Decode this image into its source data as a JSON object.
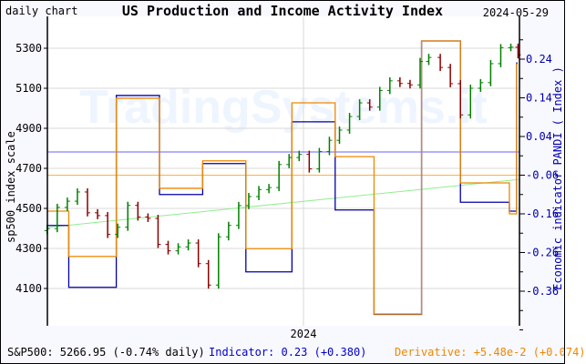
{
  "header": {
    "title": "US Production and Income Activity Index",
    "subtitle": "daily chart",
    "date": "2024-05-29"
  },
  "status": {
    "sp500": "S&P500: 5266.95 (-0.74% daily)",
    "indicator": "Indicator: 0.23 (+0.380)",
    "derivative": "Derivative: +5.48e-2 (+0.074)"
  },
  "watermark": "TradingSystems.it",
  "chart_data": {
    "type": "line",
    "title": "US Production and Income Activity Index",
    "ylabel": "sp500 index scale",
    "y2label": "Economic indicator PANDI ( Index )",
    "x_tick_labels": [
      "2024"
    ],
    "y_ticks": [
      5300,
      5100,
      4900,
      4700,
      4500,
      4300,
      4100
    ],
    "y2_ticks": [
      0.24,
      0.14,
      0.04,
      -0.06,
      -0.16,
      -0.26,
      -0.36
    ],
    "ylim": [
      3930,
      5460
    ],
    "y2lim": [
      -0.46,
      0.35
    ],
    "xlim": [
      "2023-07-06",
      "2024-05-31"
    ],
    "grid": true,
    "colors": {
      "up": "#008000",
      "down": "#8b0000",
      "indicator": "#0000aa",
      "derivative": "#ee8800",
      "trend": "#90ee90",
      "indicator_ref": "#6666ff",
      "derivative_ref": "#ffb040"
    },
    "sp500_weekly": {
      "dates": [
        "2023-07-07",
        "2023-07-14",
        "2023-07-21",
        "2023-07-28",
        "2023-08-04",
        "2023-08-11",
        "2023-08-18",
        "2023-08-25",
        "2023-09-01",
        "2023-09-08",
        "2023-09-15",
        "2023-09-22",
        "2023-09-29",
        "2023-10-06",
        "2023-10-13",
        "2023-10-20",
        "2023-10-27",
        "2023-11-03",
        "2023-11-10",
        "2023-11-17",
        "2023-11-24",
        "2023-12-01",
        "2023-12-08",
        "2023-12-15",
        "2023-12-22",
        "2023-12-29",
        "2024-01-05",
        "2024-01-12",
        "2024-01-19",
        "2024-01-26",
        "2024-02-02",
        "2024-02-09",
        "2024-02-16",
        "2024-02-23",
        "2024-03-01",
        "2024-03-08",
        "2024-03-15",
        "2024-03-22",
        "2024-03-28",
        "2024-04-05",
        "2024-04-12",
        "2024-04-19",
        "2024-04-26",
        "2024-05-03",
        "2024-05-10",
        "2024-05-17",
        "2024-05-24",
        "2024-05-29"
      ],
      "close": [
        4399,
        4505,
        4536,
        4582,
        4478,
        4464,
        4370,
        4406,
        4515,
        4457,
        4450,
        4320,
        4288,
        4308,
        4327,
        4224,
        4117,
        4358,
        4415,
        4514,
        4559,
        4594,
        4604,
        4719,
        4754,
        4770,
        4697,
        4784,
        4840,
        4891,
        4959,
        5027,
        5006,
        5089,
        5137,
        5124,
        5117,
        5234,
        5254,
        5204,
        5123,
        4967,
        5100,
        5128,
        5223,
        5303,
        5305,
        5267
      ]
    },
    "series": [
      {
        "name": "Indicator",
        "axis": "y2",
        "steps": [
          [
            "2023-07-06",
            -0.19
          ],
          [
            "2023-07-22",
            -0.35
          ],
          [
            "2023-08-24",
            0.146
          ],
          [
            "2023-09-23",
            -0.11
          ],
          [
            "2023-10-23",
            -0.03
          ],
          [
            "2023-11-22",
            -0.31
          ],
          [
            "2023-12-24",
            0.078
          ],
          [
            "2024-01-23",
            -0.15
          ],
          [
            "2024-02-19",
            -0.42
          ],
          [
            "2024-03-23",
            0.287
          ],
          [
            "2024-04-19",
            -0.13
          ],
          [
            "2024-05-23",
            -0.153
          ],
          [
            "2024-05-28",
            0.23
          ]
        ]
      },
      {
        "name": "Derivative",
        "axis": "y2",
        "steps": [
          [
            "2023-07-06",
            -0.153
          ],
          [
            "2023-07-22",
            -0.27
          ],
          [
            "2023-08-24",
            0.139
          ],
          [
            "2023-09-23",
            -0.094
          ],
          [
            "2023-10-23",
            -0.023
          ],
          [
            "2023-11-22",
            -0.25
          ],
          [
            "2023-12-24",
            0.127
          ],
          [
            "2024-01-23",
            -0.012
          ],
          [
            "2024-02-19",
            -0.419
          ],
          [
            "2024-03-23",
            0.287
          ],
          [
            "2024-04-19",
            -0.08
          ],
          [
            "2024-05-23",
            -0.16
          ],
          [
            "2024-05-28",
            0.228
          ]
        ]
      }
    ],
    "indicator_ref": 0.0,
    "derivative_ref": -0.06,
    "trend": {
      "start": [
        "2023-07-06",
        4405
      ],
      "end": [
        "2024-05-31",
        4645
      ]
    }
  }
}
